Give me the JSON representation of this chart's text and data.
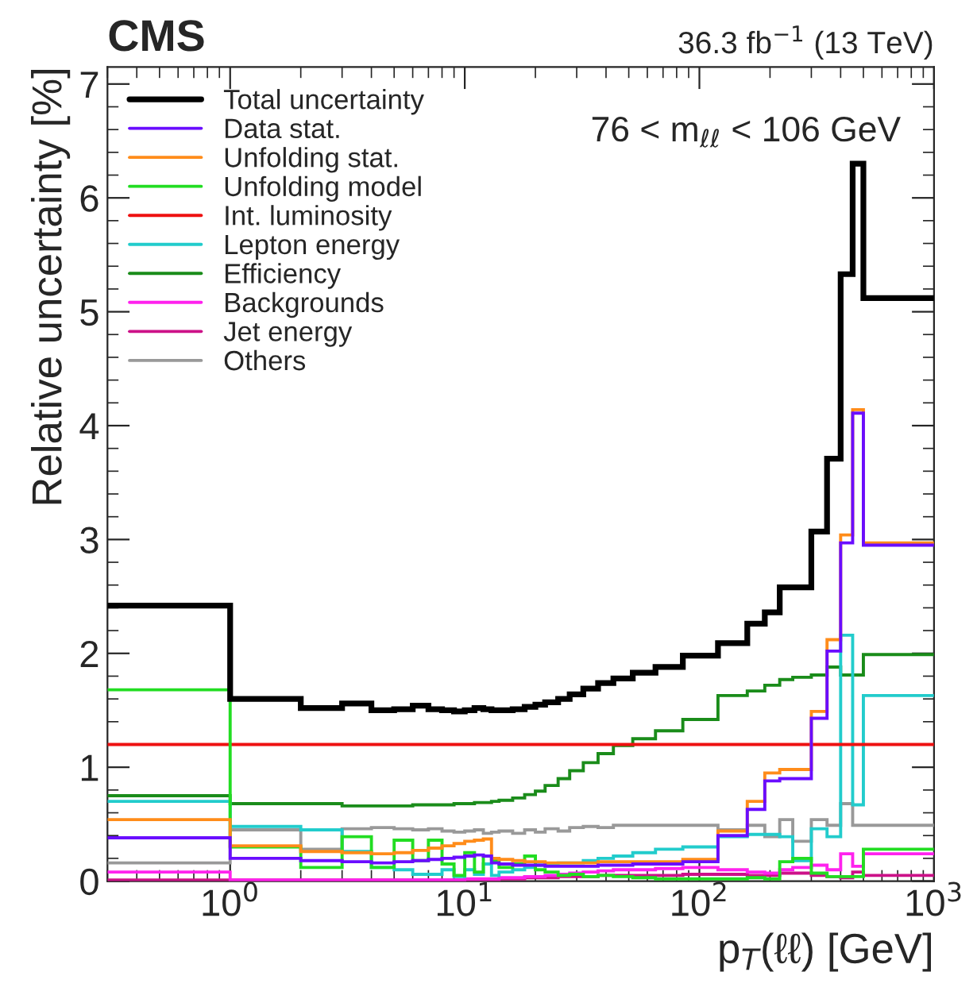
{
  "chart_data": {
    "type": "histogram",
    "title": "CMS",
    "subtitle": "36.3 fb$^{−1}$ (13 TeV)",
    "xlabel": "p$_{T}$(ℓℓ) [GeV]",
    "ylabel": "Relative uncertainty [%]",
    "annotations": [
      "76 < m$_{ℓℓ}$ < 106 GeV"
    ],
    "bins": [
      0.3,
      1,
      2,
      3,
      4,
      5,
      6,
      7,
      8,
      9,
      10,
      11,
      12,
      13,
      14,
      16,
      18,
      20,
      22,
      25,
      28,
      32,
      37,
      43,
      52,
      65,
      85,
      120,
      160,
      190,
      220,
      250,
      300,
      350,
      400,
      450,
      500,
      1000
    ],
    "log": "x",
    "xlim": [
      0.3,
      1000
    ],
    "ylim": [
      0,
      7.15
    ],
    "xticks": [
      {
        "value": 1,
        "label": "10$^{0}$"
      },
      {
        "value": 10,
        "label": "10$^{1}$"
      },
      {
        "value": 100,
        "label": "10$^{2}$"
      },
      {
        "value": 1000,
        "label": "10$^{3}$"
      }
    ],
    "yticks": [
      0,
      1,
      2,
      3,
      4,
      5,
      6,
      7
    ],
    "grid": false,
    "legend": "top left",
    "series": [
      {
        "name": "Total uncertainty",
        "color": "#000000",
        "values": [
          2.42,
          1.6,
          1.52,
          1.56,
          1.5,
          1.51,
          1.54,
          1.51,
          1.5,
          1.49,
          1.5,
          1.52,
          1.51,
          1.5,
          1.5,
          1.51,
          1.53,
          1.55,
          1.57,
          1.6,
          1.64,
          1.69,
          1.74,
          1.78,
          1.83,
          1.88,
          1.98,
          2.09,
          2.26,
          2.36,
          2.58,
          2.58,
          3.07,
          3.71,
          5.33,
          6.3,
          5.12
        ]
      },
      {
        "name": "Data stat.",
        "color": "#6a0dff",
        "values": [
          0.38,
          0.2,
          0.18,
          0.17,
          0.16,
          0.17,
          0.18,
          0.19,
          0.2,
          0.21,
          0.22,
          0.23,
          0.22,
          0.16,
          0.15,
          0.14,
          0.14,
          0.14,
          0.13,
          0.13,
          0.13,
          0.13,
          0.14,
          0.14,
          0.15,
          0.15,
          0.17,
          0.4,
          0.63,
          0.88,
          0.9,
          0.9,
          1.43,
          2.02,
          2.97,
          4.11,
          2.95
        ]
      },
      {
        "name": "Unfolding stat.",
        "color": "#ff8c1a",
        "values": [
          0.54,
          0.31,
          0.26,
          0.25,
          0.24,
          0.25,
          0.27,
          0.29,
          0.31,
          0.33,
          0.35,
          0.36,
          0.37,
          0.2,
          0.19,
          0.18,
          0.17,
          0.17,
          0.16,
          0.16,
          0.16,
          0.16,
          0.17,
          0.17,
          0.17,
          0.17,
          0.19,
          0.44,
          0.7,
          0.95,
          0.98,
          0.98,
          1.49,
          2.12,
          3.04,
          4.14,
          2.97
        ]
      },
      {
        "name": "Unfolding model",
        "color": "#22dd22",
        "values": [
          1.68,
          0.3,
          0.12,
          0.39,
          0.12,
          0.36,
          0.18,
          0.36,
          0.15,
          0.05,
          0.25,
          0.08,
          0.22,
          0.18,
          0.12,
          0.15,
          0.22,
          0.1,
          0.08,
          0.05,
          0.06,
          0.04,
          0.05,
          0.04,
          0.03,
          0.02,
          0.02,
          0.02,
          0.03,
          0.02,
          0.17,
          0.2,
          0.07,
          0.04,
          0.04,
          0.04,
          0.28
        ]
      },
      {
        "name": "Int. luminosity",
        "color": "#ee1111",
        "values": [
          1.2,
          1.2,
          1.2,
          1.2,
          1.2,
          1.2,
          1.2,
          1.2,
          1.2,
          1.2,
          1.2,
          1.2,
          1.2,
          1.2,
          1.2,
          1.2,
          1.2,
          1.2,
          1.2,
          1.2,
          1.2,
          1.2,
          1.2,
          1.2,
          1.2,
          1.2,
          1.2,
          1.2,
          1.2,
          1.2,
          1.2,
          1.2,
          1.2,
          1.2,
          1.2,
          1.2,
          1.2
        ]
      },
      {
        "name": "Lepton energy",
        "color": "#22cccc",
        "values": [
          0.7,
          0.48,
          0.45,
          0.26,
          0.12,
          0.1,
          0.06,
          0.06,
          0.1,
          0.04,
          0.1,
          0.06,
          0.15,
          0.05,
          0.08,
          0.1,
          0.12,
          0.14,
          0.15,
          0.16,
          0.16,
          0.18,
          0.2,
          0.22,
          0.25,
          0.28,
          0.3,
          0.39,
          0.41,
          0.41,
          0.39,
          0.18,
          0.46,
          0.39,
          2.16,
          0.67,
          1.63
        ]
      },
      {
        "name": "Efficiency",
        "color": "#1a8c1a",
        "values": [
          0.75,
          0.68,
          0.68,
          0.66,
          0.66,
          0.66,
          0.67,
          0.67,
          0.67,
          0.68,
          0.68,
          0.69,
          0.69,
          0.7,
          0.71,
          0.73,
          0.76,
          0.79,
          0.84,
          0.9,
          0.97,
          1.04,
          1.12,
          1.19,
          1.25,
          1.32,
          1.42,
          1.63,
          1.67,
          1.72,
          1.77,
          1.79,
          1.81,
          1.88,
          1.81,
          1.81,
          1.99
        ]
      },
      {
        "name": "Backgrounds",
        "color": "#ff22ee",
        "values": [
          0.08,
          0.01,
          0.01,
          0.01,
          0.01,
          0.01,
          0.01,
          0.01,
          0.01,
          0.01,
          0.02,
          0.02,
          0.02,
          0.02,
          0.03,
          0.03,
          0.04,
          0.04,
          0.05,
          0.06,
          0.07,
          0.08,
          0.09,
          0.1,
          0.1,
          0.11,
          0.12,
          0.1,
          0.08,
          0.07,
          0.1,
          0.12,
          0.14,
          0.1,
          0.24,
          0.13,
          0.24
        ]
      },
      {
        "name": "Jet energy",
        "color": "#cc1188",
        "values": [
          0.01,
          0.01,
          0.01,
          0.01,
          0.01,
          0.01,
          0.01,
          0.01,
          0.01,
          0.01,
          0.01,
          0.01,
          0.01,
          0.01,
          0.02,
          0.02,
          0.03,
          0.03,
          0.03,
          0.04,
          0.04,
          0.04,
          0.05,
          0.05,
          0.05,
          0.05,
          0.06,
          0.06,
          0.05,
          0.05,
          0.07,
          0.07,
          0.05,
          0.04,
          0.03,
          0.08,
          0.05
        ]
      },
      {
        "name": "Others",
        "color": "#999999",
        "values": [
          0.16,
          0.45,
          0.28,
          0.46,
          0.47,
          0.46,
          0.45,
          0.46,
          0.44,
          0.43,
          0.44,
          0.45,
          0.42,
          0.43,
          0.44,
          0.42,
          0.45,
          0.43,
          0.46,
          0.44,
          0.47,
          0.48,
          0.47,
          0.49,
          0.49,
          0.49,
          0.49,
          0.45,
          0.49,
          0.39,
          0.54,
          0.35,
          0.54,
          0.49,
          0.68,
          0.49,
          0.49
        ]
      }
    ]
  }
}
